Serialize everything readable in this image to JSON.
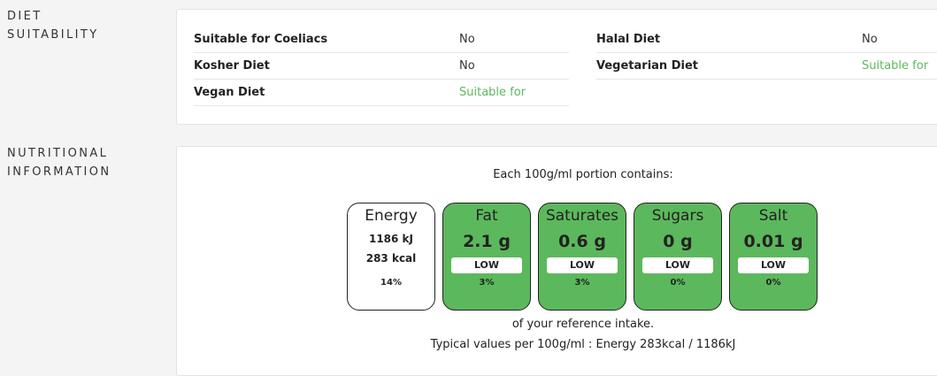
{
  "diet_section": {
    "label_line1": "DIET",
    "label_line2": "SUITABILITY",
    "rows": [
      {
        "name": "Suitable for Coeliacs",
        "value": "No"
      },
      {
        "name": "Halal Diet",
        "value": "No"
      },
      {
        "name": "Kosher Diet",
        "value": "No"
      },
      {
        "name": "Vegetarian Diet",
        "value": "Suitable for"
      },
      {
        "name": "Vegan Diet",
        "value": "Suitable for"
      }
    ],
    "suitable_color": "#5cb85c"
  },
  "nutrition_section": {
    "label_line1": "NUTRITIONAL",
    "label_line2": "INFORMATION",
    "portion_caption": "Each 100g/ml portion contains:",
    "energy": {
      "label": "Energy",
      "kj": "1186 kJ",
      "kcal": "283 kcal",
      "percent": "14%"
    },
    "nutrients": [
      {
        "label": "Fat",
        "amount": "2.1 g",
        "level": "LOW",
        "percent": "3%"
      },
      {
        "label": "Saturates",
        "amount": "0.6 g",
        "level": "LOW",
        "percent": "3%"
      },
      {
        "label": "Sugars",
        "amount": "0 g",
        "level": "LOW",
        "percent": "0%"
      },
      {
        "label": "Salt",
        "amount": "0.01 g",
        "level": "LOW",
        "percent": "0%"
      }
    ],
    "low_color": "#5cb85c",
    "reference_caption": "of your reference intake.",
    "typical_caption": "Typical values per 100g/ml : Energy 283kcal / 1186kJ"
  }
}
